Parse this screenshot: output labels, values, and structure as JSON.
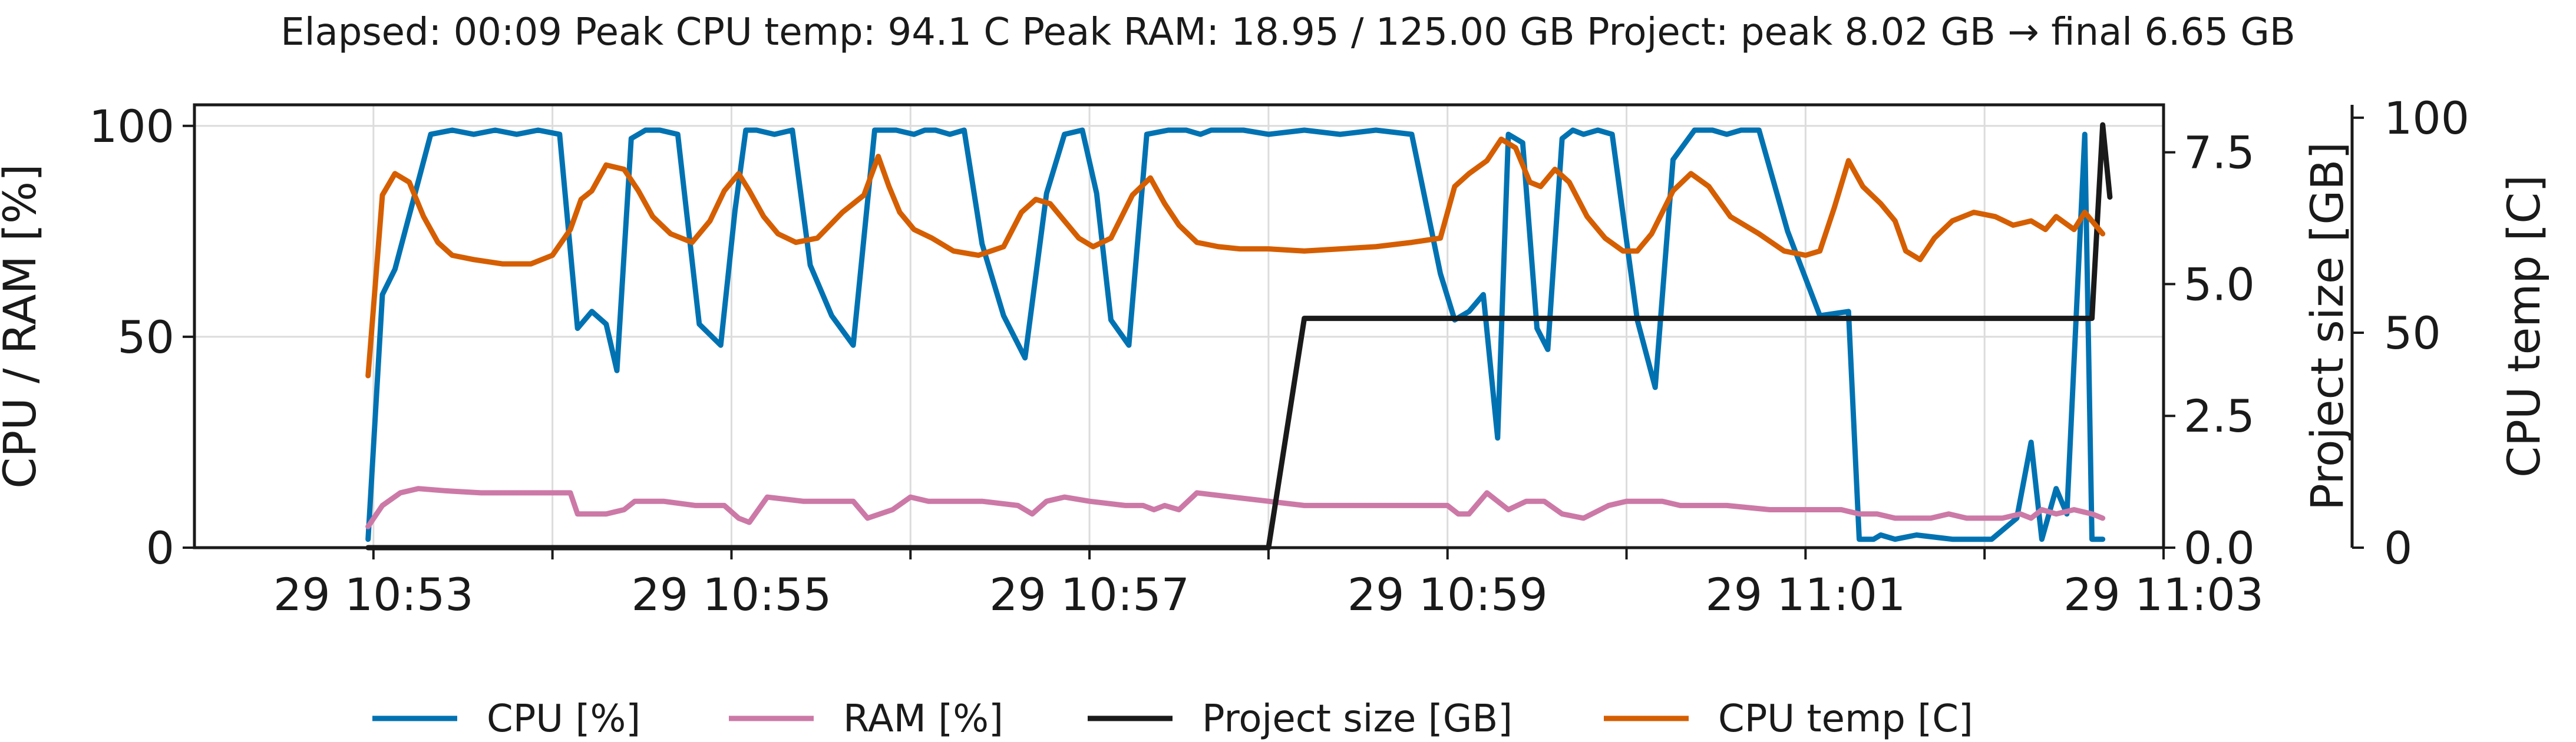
{
  "chart_data": {
    "type": "line",
    "title": "Elapsed: 00:09   Peak CPU temp: 94.1 C   Peak RAM: 18.95 / 125.00 GB   Project: peak 8.02 GB → final 6.65 GB",
    "xlabel": "",
    "x_ticks": [
      "29 10:53",
      "29 10:55",
      "29 10:57",
      "29 10:59",
      "29 11:01",
      "29 11:03"
    ],
    "x_tick_minutes": [
      0,
      2,
      4,
      6,
      8,
      10
    ],
    "x_minor_tick_minutes": [
      1,
      3,
      5,
      7,
      9
    ],
    "xlim_minutes": [
      -1.0,
      10.0
    ],
    "grid": true,
    "legend_position": "bottom",
    "axes": {
      "left": {
        "label": "CPU / RAM [%]",
        "ylim": [
          0,
          105
        ],
        "ticks": [
          0,
          50,
          100
        ]
      },
      "right1": {
        "label": "Project size [GB]",
        "ylim": [
          0,
          8.4
        ],
        "ticks": [
          0.0,
          2.5,
          5.0,
          7.5
        ],
        "tick_labels": [
          "0.0",
          "2.5",
          "5.0",
          "7.5"
        ]
      },
      "right2": {
        "label": "CPU temp [C]",
        "ylim": [
          0,
          103
        ],
        "ticks": [
          0,
          50,
          100
        ]
      }
    },
    "series": [
      {
        "name": "CPU [%]",
        "color": "#0072b2",
        "axis": "left",
        "x": [
          -0.03,
          0.05,
          0.12,
          0.22,
          0.32,
          0.44,
          0.56,
          0.68,
          0.8,
          0.92,
          1.04,
          1.14,
          1.22,
          1.3,
          1.36,
          1.44,
          1.52,
          1.6,
          1.7,
          1.82,
          1.94,
          2.02,
          2.08,
          2.14,
          2.24,
          2.34,
          2.44,
          2.56,
          2.68,
          2.8,
          2.92,
          3.02,
          3.08,
          3.14,
          3.22,
          3.3,
          3.4,
          3.52,
          3.64,
          3.76,
          3.86,
          3.96,
          4.04,
          4.12,
          4.22,
          4.32,
          4.44,
          4.54,
          4.62,
          4.68,
          4.76,
          4.86,
          5.0,
          5.2,
          5.4,
          5.6,
          5.8,
          5.96,
          6.04,
          6.12,
          6.2,
          6.28,
          6.34,
          6.42,
          6.5,
          6.56,
          6.64,
          6.7,
          6.76,
          6.84,
          6.92,
          7.06,
          7.16,
          7.26,
          7.38,
          7.48,
          7.56,
          7.64,
          7.74,
          7.9,
          8.08,
          8.24,
          8.3,
          8.38,
          8.42,
          8.5,
          8.62,
          8.82,
          9.04,
          9.18,
          9.26,
          9.32,
          9.4,
          9.46,
          9.56,
          9.6,
          9.66
        ],
        "y": [
          2,
          60,
          66,
          82,
          98,
          99,
          98,
          99,
          98,
          99,
          98,
          52,
          56,
          53,
          42,
          97,
          99,
          99,
          98,
          53,
          48,
          80,
          99,
          99,
          98,
          99,
          67,
          55,
          48,
          99,
          99,
          98,
          99,
          99,
          98,
          99,
          72,
          55,
          45,
          84,
          98,
          99,
          84,
          54,
          48,
          98,
          99,
          99,
          98,
          99,
          99,
          99,
          98,
          99,
          98,
          99,
          98,
          65,
          54,
          56,
          60,
          26,
          98,
          96,
          52,
          47,
          97,
          99,
          98,
          99,
          98,
          54,
          38,
          92,
          99,
          99,
          98,
          99,
          99,
          75,
          55,
          56,
          2,
          2,
          3,
          2,
          3,
          2,
          2,
          7,
          25,
          2,
          14,
          8,
          98,
          2,
          2
        ]
      },
      {
        "name": "RAM [%]",
        "color": "#cc79a7",
        "axis": "left",
        "x": [
          -0.03,
          0.05,
          0.15,
          0.25,
          0.4,
          0.6,
          0.8,
          1.0,
          1.1,
          1.14,
          1.2,
          1.3,
          1.4,
          1.46,
          1.52,
          1.62,
          1.8,
          1.96,
          2.04,
          2.1,
          2.2,
          2.4,
          2.6,
          2.68,
          2.76,
          2.9,
          3.0,
          3.1,
          3.2,
          3.4,
          3.6,
          3.68,
          3.76,
          3.86,
          4.0,
          4.2,
          4.3,
          4.36,
          4.42,
          4.5,
          4.6,
          4.8,
          5.0,
          5.2,
          5.4,
          5.6,
          5.8,
          6.0,
          6.06,
          6.12,
          6.22,
          6.34,
          6.44,
          6.54,
          6.64,
          6.76,
          6.9,
          7.0,
          7.1,
          7.2,
          7.3,
          7.4,
          7.56,
          7.8,
          8.0,
          8.2,
          8.3,
          8.4,
          8.5,
          8.56,
          8.64,
          8.7,
          8.8,
          8.9,
          9.0,
          9.1,
          9.2,
          9.26,
          9.32,
          9.4,
          9.5,
          9.6,
          9.66
        ],
        "y": [
          5,
          10,
          13,
          14,
          13.5,
          13,
          13,
          13,
          13,
          8,
          8,
          8,
          9,
          11,
          11,
          11,
          10,
          10,
          7,
          6,
          12,
          11,
          11,
          11,
          7,
          9,
          12,
          11,
          11,
          11,
          10,
          8,
          11,
          12,
          11,
          10,
          10,
          9,
          10,
          9,
          13,
          12,
          11,
          10,
          10,
          10,
          10,
          10,
          8,
          8,
          13,
          9,
          11,
          11,
          8,
          7,
          10,
          11,
          11,
          11,
          10,
          10,
          10,
          9,
          9,
          9,
          8,
          8,
          7,
          7,
          7,
          7,
          8,
          7,
          7,
          7,
          8,
          7,
          9,
          8,
          9,
          8,
          7
        ]
      },
      {
        "name": "Project size [GB]",
        "color": "#1a1a1a",
        "axis": "right1",
        "x": [
          -0.03,
          5.0,
          5.2,
          9.6,
          9.66,
          9.7
        ],
        "y": [
          0.0,
          0.0,
          4.35,
          4.35,
          8.02,
          6.65
        ]
      },
      {
        "name": "CPU temp [C]",
        "color": "#d55e00",
        "axis": "right2",
        "x": [
          -0.03,
          0.05,
          0.12,
          0.2,
          0.28,
          0.36,
          0.44,
          0.56,
          0.72,
          0.88,
          1.0,
          1.1,
          1.16,
          1.22,
          1.3,
          1.4,
          1.48,
          1.56,
          1.66,
          1.78,
          1.88,
          1.96,
          2.04,
          2.1,
          2.18,
          2.26,
          2.36,
          2.48,
          2.62,
          2.74,
          2.82,
          2.88,
          2.94,
          3.02,
          3.12,
          3.24,
          3.38,
          3.52,
          3.62,
          3.7,
          3.78,
          3.86,
          3.94,
          4.02,
          4.12,
          4.24,
          4.34,
          4.42,
          4.5,
          4.6,
          4.72,
          4.84,
          5.0,
          5.2,
          5.4,
          5.6,
          5.8,
          5.96,
          6.04,
          6.12,
          6.22,
          6.3,
          6.38,
          6.46,
          6.52,
          6.6,
          6.68,
          6.78,
          6.88,
          6.98,
          7.06,
          7.14,
          7.26,
          7.36,
          7.46,
          7.58,
          7.74,
          7.88,
          8.0,
          8.08,
          8.16,
          8.24,
          8.32,
          8.42,
          8.5,
          8.56,
          8.64,
          8.72,
          8.82,
          8.94,
          9.06,
          9.16,
          9.26,
          9.34,
          9.4,
          9.5,
          9.56,
          9.66
        ],
        "y": [
          40,
          82,
          87,
          85,
          77,
          71,
          68,
          67,
          66,
          66,
          68,
          74,
          81,
          83,
          89,
          88,
          83,
          77,
          73,
          71,
          76,
          83,
          87,
          83,
          77,
          73,
          71,
          72,
          78,
          82,
          91,
          84,
          78,
          74,
          72,
          69,
          68,
          70,
          78,
          81,
          80,
          76,
          72,
          70,
          72,
          82,
          86,
          80,
          75,
          71,
          70,
          69.5,
          69.5,
          69,
          69.5,
          70,
          71,
          72,
          84,
          87,
          90,
          95,
          93,
          85,
          84,
          88,
          85,
          77,
          72,
          69,
          69,
          73,
          83,
          87,
          84,
          77,
          73,
          69,
          68,
          69,
          79,
          90,
          84,
          80,
          76,
          69,
          67,
          72,
          76,
          78,
          77,
          75,
          76,
          74,
          77,
          74,
          78,
          73
        ]
      }
    ]
  }
}
